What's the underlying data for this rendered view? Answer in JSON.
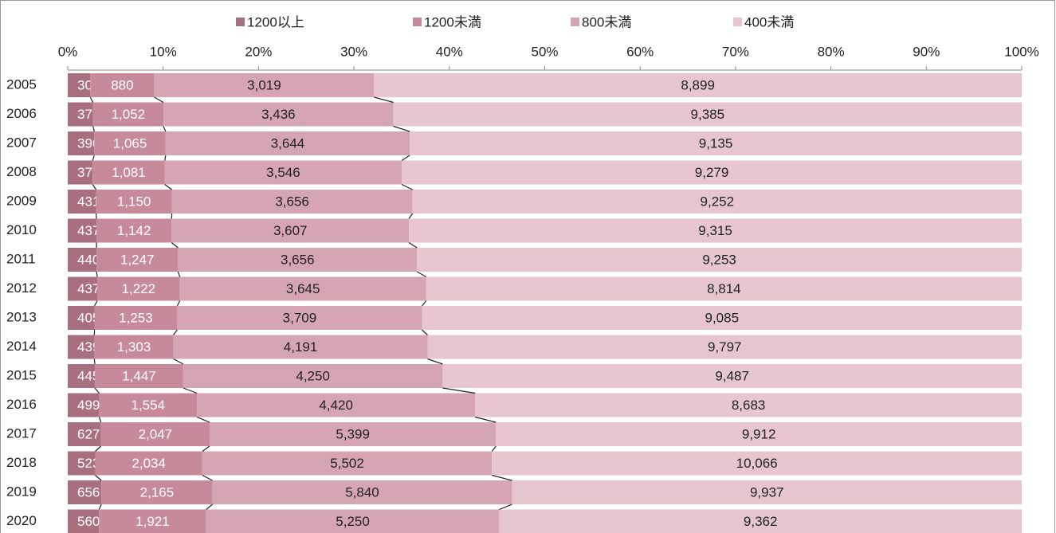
{
  "chart_data": {
    "type": "bar",
    "orientation": "horizontal",
    "stacking": "percent",
    "categories": [
      "2005",
      "2006",
      "2007",
      "2008",
      "2009",
      "2010",
      "2011",
      "2012",
      "2013",
      "2014",
      "2015",
      "2016",
      "2017",
      "2018",
      "2019",
      "2020"
    ],
    "series": [
      {
        "name": "1200以上",
        "color": "#a8707e",
        "values": [
          309,
          377,
          396,
          372,
          431,
          437,
          440,
          437,
          405,
          439,
          445,
          499,
          627,
          523,
          656,
          560
        ]
      },
      {
        "name": "1200未満",
        "color": "#c68a9b",
        "values": [
          880,
          1052,
          1065,
          1081,
          1150,
          1142,
          1247,
          1222,
          1253,
          1303,
          1447,
          1554,
          2047,
          2034,
          2165,
          1921
        ],
        "value_labels": [
          "880",
          "1,052",
          "1,065",
          "1,081",
          "1,150",
          "1,142",
          "1,247",
          "1,222",
          "1,253",
          "1,303",
          "1,447",
          "1,554",
          "2,047",
          "2,034",
          "2,165",
          "1,921"
        ]
      },
      {
        "name": "800未満",
        "color": "#d6a5b4",
        "values": [
          3019,
          3436,
          3644,
          3546,
          3656,
          3607,
          3656,
          3645,
          3709,
          4191,
          4250,
          4420,
          5399,
          5502,
          5840,
          5250
        ],
        "value_labels": [
          "3,019",
          "3,436",
          "3,644",
          "3,546",
          "3,656",
          "3,607",
          "3,656",
          "3,645",
          "3,709",
          "4,191",
          "4,250",
          "4,420",
          "5,399",
          "5,502",
          "5,840",
          "5,250"
        ]
      },
      {
        "name": "400未満",
        "color": "#e7c6cf",
        "values": [
          8899,
          9385,
          9135,
          9279,
          9252,
          9315,
          9253,
          8814,
          9085,
          9797,
          9487,
          8683,
          9912,
          10066,
          9937,
          9362
        ],
        "value_labels": [
          "8,899",
          "9,385",
          "9,135",
          "9,279",
          "9,252",
          "9,315",
          "9,253",
          "8,814",
          "9,085",
          "9,797",
          "9,487",
          "8,683",
          "9,912",
          "10,066",
          "9,937",
          "9,362"
        ]
      }
    ],
    "xlim": [
      0,
      100
    ],
    "xticks": [
      {
        "value": 0,
        "label": "0%"
      },
      {
        "value": 10,
        "label": "10%"
      },
      {
        "value": 20,
        "label": "20%"
      },
      {
        "value": 30,
        "label": "30%"
      },
      {
        "value": 40,
        "label": "40%"
      },
      {
        "value": 50,
        "label": "50%"
      },
      {
        "value": 60,
        "label": "60%"
      },
      {
        "value": 70,
        "label": "70%"
      },
      {
        "value": 80,
        "label": "80%"
      },
      {
        "value": 90,
        "label": "90%"
      },
      {
        "value": 100,
        "label": "100%"
      }
    ],
    "legend": "top"
  }
}
